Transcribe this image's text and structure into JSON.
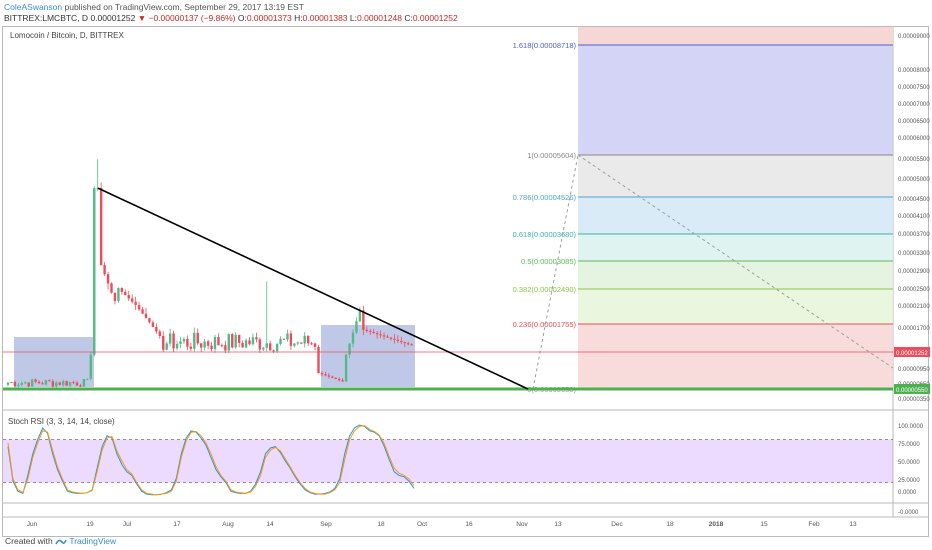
{
  "header": {
    "author": "ColeASwanson",
    "published_text": "published on TradingView.com, September 29, 2017 13:19 EST",
    "symbol": "BITTREX:LMCBTC, D",
    "last": "0.00001252",
    "change": "▼ −0.00000137 (−9.86%)",
    "o_label": "O:",
    "o_value": "0.00001373",
    "h_label": "H:",
    "h_value": "0.00001383",
    "l_label": "L:",
    "l_value": "0.00001248",
    "c_label": "C:",
    "c_value": "0.00001252"
  },
  "footer": {
    "created_with": "Created with",
    "brand": "TradingView"
  },
  "colors": {
    "up": "#53b987",
    "down": "#eb4d5c",
    "trendline": "#000000",
    "support": "#4caf50",
    "rsi_k": "#2196f3",
    "rsi_d": "#ff9800",
    "box": "#8c9bd3",
    "rsi_band": "#cc99ff"
  },
  "chart_data": [
    {
      "type": "candlestick",
      "title": "Lomocoin / Bitcoin, D, BITTREX",
      "y_axis_side": "right",
      "y_ticks": [
        "0.00009000",
        "0.00008000",
        "0.00007500",
        "0.00007000",
        "0.00006500",
        "0.00006000",
        "0.00005500",
        "0.00005000",
        "0.00004500",
        "0.00004100",
        "0.00003700",
        "0.00003300",
        "0.00002900",
        "0.00002500",
        "0.00002100",
        "0.00001700",
        "0.00000950",
        "0.00000650",
        "0.00000350"
      ],
      "x_ticks": [
        "Jun",
        "19",
        "Jul",
        "17",
        "Aug",
        "14",
        "Sep",
        "18",
        "Oct",
        "16",
        "Nov",
        "13",
        "Dec",
        "18",
        "2018",
        "15",
        "Feb",
        "13"
      ],
      "price_tags": [
        {
          "value": "0.00001252",
          "color": "#eb4d5c"
        },
        {
          "value": "0.00000550",
          "color": "#4caf50"
        }
      ],
      "key_prices": {
        "last": 1.252e-05,
        "support": 5.5e-06,
        "spike_high": 5.25e-05,
        "secondary_high": 2.9e-05
      },
      "fibonacci": {
        "high": 5.604e-05,
        "low": 5.5e-06,
        "levels": [
          {
            "label": "1.618(0.00008718)",
            "color": "#4d5fd1",
            "fill": "#ccccf5"
          },
          {
            "label": "1(0.00005604)",
            "color": "#888888",
            "fill": "#e6e6e6"
          },
          {
            "label": "0.786(0.00004526)",
            "color": "#4ea3d0",
            "fill": "#d3e8f7"
          },
          {
            "label": "0.618(0.00003680)",
            "color": "#3cb0a6",
            "fill": "#d9f2ee"
          },
          {
            "label": "0.5(0.00003085)",
            "color": "#5cb85c",
            "fill": "#dff2da"
          },
          {
            "label": "0.382(0.00002490)",
            "color": "#8bc34a",
            "fill": "#e8f5d9"
          },
          {
            "label": "0.236(0.00001755)",
            "color": "#e05050",
            "fill": "#f7d6d6"
          },
          {
            "label": "0(0.00000550)",
            "color": "#9e9e9e",
            "fill": "#f7d6d6"
          }
        ]
      }
    },
    {
      "type": "line",
      "title": "Stoch RSI (3, 3, 14, 14, close)",
      "ylim": [
        0,
        100
      ],
      "y_ticks": [
        "100.0000",
        "75.0000",
        "50.0000",
        "25.0000",
        "0.0000",
        "-0.0000"
      ],
      "upper_band": 80,
      "lower_band": 20,
      "series": [
        {
          "values": [
            70,
            22,
            8,
            5,
            30,
            60,
            80,
            96,
            88,
            60,
            38,
            22,
            8,
            6,
            5,
            5,
            6,
            10,
            40,
            70,
            85,
            82,
            60,
            45,
            35,
            30,
            18,
            8,
            4,
            3,
            3,
            4,
            6,
            10,
            26,
            60,
            82,
            92,
            90,
            82,
            72,
            55,
            38,
            28,
            20,
            8,
            6,
            5,
            5,
            8,
            18,
            35,
            60,
            68,
            70,
            62,
            50,
            40,
            28,
            18,
            10,
            6,
            4,
            4,
            5,
            7,
            12,
            25,
            60,
            85,
            96,
            100,
            98,
            92,
            90,
            85,
            70,
            52,
            35,
            30,
            28,
            22,
            12
          ]
        },
        {
          "values": [
            75,
            25,
            10,
            6,
            25,
            55,
            75,
            92,
            90,
            65,
            42,
            25,
            10,
            7,
            6,
            5,
            6,
            9,
            35,
            65,
            82,
            84,
            64,
            50,
            38,
            32,
            20,
            10,
            5,
            4,
            3,
            4,
            5,
            8,
            22,
            55,
            78,
            90,
            91,
            85,
            75,
            60,
            42,
            30,
            22,
            10,
            7,
            6,
            5,
            7,
            15,
            30,
            55,
            65,
            69,
            64,
            53,
            42,
            30,
            20,
            12,
            7,
            5,
            4,
            4,
            6,
            10,
            20,
            52,
            80,
            92,
            98,
            99,
            94,
            91,
            86,
            74,
            56,
            40,
            33,
            30,
            25,
            16
          ]
        }
      ]
    }
  ]
}
